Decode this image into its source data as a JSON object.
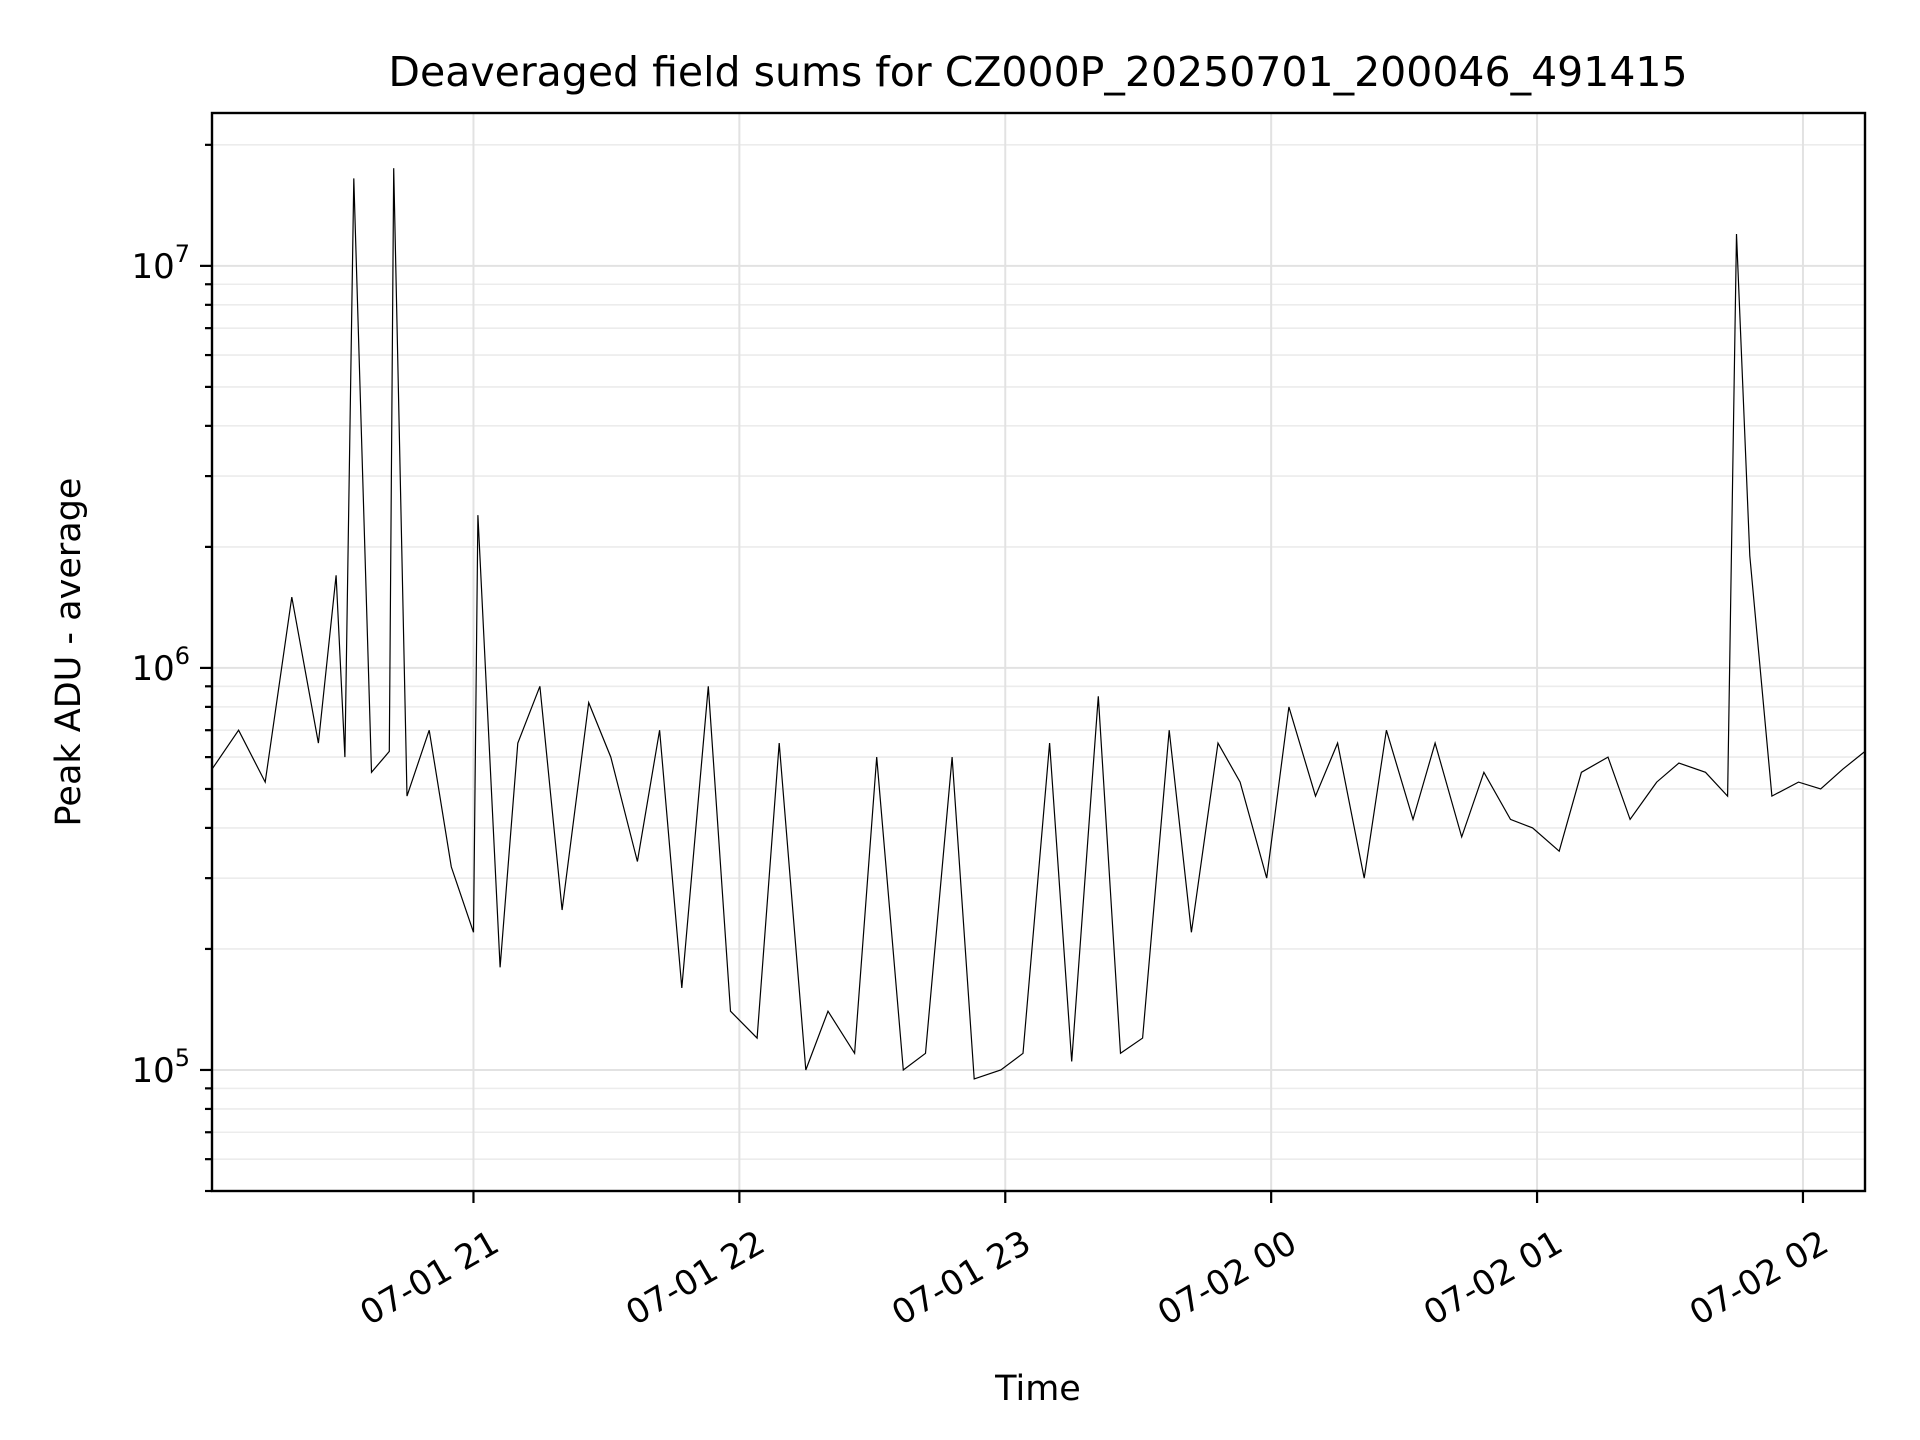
{
  "chart_data": {
    "type": "line",
    "title": "Deaveraged field sums for CZ000P_20250701_200046_491415",
    "xlabel": "Time",
    "ylabel": "Peak ADU - average",
    "yscale": "log",
    "grid": true,
    "grid_minor": true,
    "line_color": "#000000",
    "xlim": [
      "2025-07-01 20:01",
      "2025-07-02 02:14"
    ],
    "ylim": [
      50000,
      24000000
    ],
    "x_ticks": [
      {
        "value": "2025-07-01 21:00",
        "label": "07-01 21"
      },
      {
        "value": "2025-07-01 22:00",
        "label": "07-01 22"
      },
      {
        "value": "2025-07-01 23:00",
        "label": "07-01 23"
      },
      {
        "value": "2025-07-02 00:00",
        "label": "07-02 00"
      },
      {
        "value": "2025-07-02 01:00",
        "label": "07-02 01"
      },
      {
        "value": "2025-07-02 02:00",
        "label": "07-02 02"
      }
    ],
    "y_ticks": [
      {
        "value": 100000,
        "base": "10",
        "exp": "5"
      },
      {
        "value": 1000000,
        "base": "10",
        "exp": "6"
      },
      {
        "value": 10000000,
        "base": "10",
        "exp": "7"
      }
    ],
    "series": [
      {
        "x": [
          "2025-07-01 20:01",
          "2025-07-01 20:07",
          "2025-07-01 20:13",
          "2025-07-01 20:19",
          "2025-07-01 20:25",
          "2025-07-01 20:29",
          "2025-07-01 20:31",
          "2025-07-01 20:33",
          "2025-07-01 20:37",
          "2025-07-01 20:41",
          "2025-07-01 20:42",
          "2025-07-01 20:45",
          "2025-07-01 20:50",
          "2025-07-01 20:55",
          "2025-07-01 21:00",
          "2025-07-01 21:01",
          "2025-07-01 21:06",
          "2025-07-01 21:10",
          "2025-07-01 21:15",
          "2025-07-01 21:20",
          "2025-07-01 21:26",
          "2025-07-01 21:31",
          "2025-07-01 21:37",
          "2025-07-01 21:42",
          "2025-07-01 21:47",
          "2025-07-01 21:53",
          "2025-07-01 21:58",
          "2025-07-01 22:04",
          "2025-07-01 22:09",
          "2025-07-01 22:15",
          "2025-07-01 22:20",
          "2025-07-01 22:26",
          "2025-07-01 22:31",
          "2025-07-01 22:37",
          "2025-07-01 22:42",
          "2025-07-01 22:48",
          "2025-07-01 22:53",
          "2025-07-01 22:59",
          "2025-07-01 23:04",
          "2025-07-01 23:10",
          "2025-07-01 23:15",
          "2025-07-01 23:21",
          "2025-07-01 23:26",
          "2025-07-01 23:31",
          "2025-07-01 23:37",
          "2025-07-01 23:42",
          "2025-07-01 23:48",
          "2025-07-01 23:53",
          "2025-07-01 23:59",
          "2025-07-02 00:04",
          "2025-07-02 00:10",
          "2025-07-02 00:15",
          "2025-07-02 00:21",
          "2025-07-02 00:26",
          "2025-07-02 00:32",
          "2025-07-02 00:37",
          "2025-07-02 00:43",
          "2025-07-02 00:48",
          "2025-07-02 00:54",
          "2025-07-02 00:59",
          "2025-07-02 01:05",
          "2025-07-02 01:10",
          "2025-07-02 01:16",
          "2025-07-02 01:21",
          "2025-07-02 01:27",
          "2025-07-02 01:32",
          "2025-07-02 01:38",
          "2025-07-02 01:43",
          "2025-07-02 01:45",
          "2025-07-02 01:48",
          "2025-07-02 01:53",
          "2025-07-02 01:59",
          "2025-07-02 02:04",
          "2025-07-02 02:09",
          "2025-07-02 02:14"
        ],
        "y": [
          560000,
          700000,
          520000,
          1500000,
          650000,
          1700000,
          600000,
          16500000,
          550000,
          620000,
          17500000,
          480000,
          700000,
          320000,
          220000,
          2400000,
          180000,
          650000,
          900000,
          250000,
          820000,
          600000,
          330000,
          700000,
          160000,
          900000,
          140000,
          120000,
          650000,
          100000,
          140000,
          110000,
          600000,
          100000,
          110000,
          600000,
          95000,
          100000,
          110000,
          650000,
          105000,
          850000,
          110000,
          120000,
          700000,
          220000,
          650000,
          520000,
          300000,
          800000,
          480000,
          650000,
          300000,
          700000,
          420000,
          650000,
          380000,
          550000,
          420000,
          400000,
          350000,
          550000,
          600000,
          420000,
          520000,
          580000,
          550000,
          480000,
          12000000,
          1900000,
          480000,
          520000,
          500000,
          560000,
          620000
        ]
      }
    ]
  }
}
